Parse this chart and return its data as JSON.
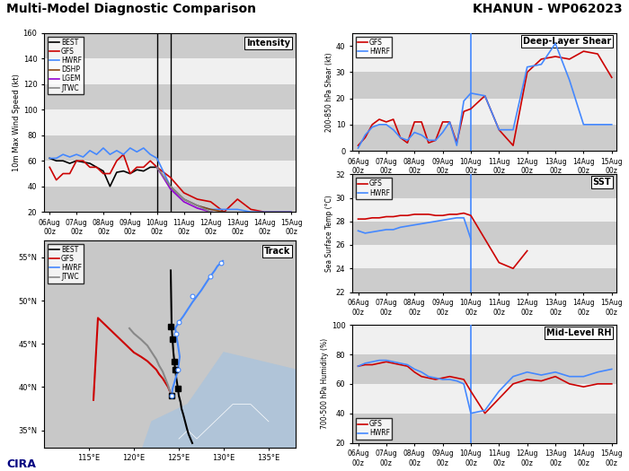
{
  "title_left": "Multi-Model Diagnostic Comparison",
  "title_right": "KHANUN - WP062023",
  "time_labels": [
    "06Aug\n00z",
    "07Aug\n00z",
    "08Aug\n00z",
    "09Aug\n00z",
    "10Aug\n00z",
    "11Aug\n00z",
    "12Aug\n00z",
    "13Aug\n00z",
    "14Aug\n00z",
    "15Aug\n00z"
  ],
  "time_x": [
    0,
    24,
    48,
    72,
    96,
    120,
    144,
    168,
    192,
    216
  ],
  "intensity": {
    "ylabel": "10m Max Wind Speed (kt)",
    "ylim": [
      20,
      160
    ],
    "yticks": [
      20,
      40,
      60,
      80,
      100,
      120,
      140,
      160
    ],
    "vline1": 96,
    "vline2": 108,
    "best_x": [
      0,
      6,
      12,
      18,
      24,
      30,
      36,
      42,
      48,
      54,
      60,
      66,
      72,
      78,
      84,
      90,
      96
    ],
    "best_y": [
      62,
      60,
      60,
      58,
      60,
      59,
      58,
      55,
      52,
      40,
      51,
      52,
      50,
      53,
      52,
      55,
      55
    ],
    "gfs_x": [
      0,
      6,
      12,
      18,
      24,
      30,
      36,
      42,
      48,
      54,
      60,
      66,
      72,
      78,
      84,
      90,
      96,
      108,
      120,
      132,
      144,
      156,
      168,
      180,
      192,
      204,
      216
    ],
    "gfs_y": [
      55,
      45,
      50,
      50,
      60,
      60,
      55,
      55,
      50,
      50,
      60,
      65,
      50,
      55,
      55,
      60,
      55,
      47,
      35,
      30,
      28,
      20,
      30,
      22,
      20,
      20,
      20
    ],
    "hwrf_x": [
      0,
      6,
      12,
      18,
      24,
      30,
      36,
      42,
      48,
      54,
      60,
      66,
      72,
      78,
      84,
      90,
      96,
      108,
      120,
      132,
      144,
      156,
      168,
      180,
      192,
      204,
      216
    ],
    "hwrf_y": [
      62,
      62,
      65,
      63,
      65,
      63,
      68,
      65,
      70,
      65,
      68,
      65,
      70,
      67,
      70,
      65,
      62,
      40,
      30,
      25,
      22,
      22,
      22,
      20,
      20,
      20,
      20
    ],
    "dshp_x": [
      96,
      108,
      120,
      132,
      144,
      156,
      168,
      180,
      192,
      204,
      216
    ],
    "dshp_y": [
      55,
      40,
      30,
      25,
      22,
      20,
      18,
      18,
      18,
      18,
      18
    ],
    "lgem_x": [
      96,
      108,
      120,
      132,
      144,
      156,
      168,
      180,
      192,
      204,
      216
    ],
    "lgem_y": [
      55,
      38,
      28,
      23,
      20,
      18,
      18,
      18,
      18,
      18,
      18
    ],
    "jtwc_x": [
      96,
      108,
      120,
      132,
      144,
      156,
      168,
      180,
      192,
      204,
      216
    ],
    "jtwc_y": [
      55,
      40,
      30,
      25,
      20,
      18,
      18,
      18,
      18,
      18,
      18
    ]
  },
  "shear": {
    "ylabel": "200-850 hPa Shear (kt)",
    "ylim": [
      0,
      45
    ],
    "yticks": [
      0,
      10,
      20,
      30,
      40
    ],
    "vline": 96,
    "gfs_x": [
      0,
      6,
      12,
      18,
      24,
      30,
      36,
      42,
      48,
      54,
      60,
      66,
      72,
      78,
      84,
      90,
      96,
      108,
      120,
      132,
      144,
      156,
      168,
      180,
      192,
      204,
      216
    ],
    "gfs_y": [
      2,
      5,
      10,
      12,
      11,
      12,
      5,
      3,
      11,
      11,
      3,
      4,
      11,
      11,
      3,
      15,
      16,
      21,
      8,
      2,
      30,
      35,
      36,
      35,
      38,
      37,
      28
    ],
    "hwrf_x": [
      0,
      6,
      12,
      18,
      24,
      30,
      36,
      42,
      48,
      54,
      60,
      66,
      72,
      78,
      84,
      90,
      96,
      108,
      120,
      132,
      144,
      156,
      168,
      180,
      192,
      204,
      216
    ],
    "hwrf_y": [
      1,
      6,
      9,
      10,
      10,
      8,
      5,
      4,
      7,
      6,
      4,
      4,
      7,
      11,
      2,
      19,
      22,
      21,
      8,
      8,
      32,
      33,
      41,
      27,
      10,
      10,
      10
    ]
  },
  "sst": {
    "ylabel": "Sea Surface Temp (°C)",
    "ylim": [
      22,
      32
    ],
    "yticks": [
      22,
      24,
      26,
      28,
      30,
      32
    ],
    "vline": 96,
    "gfs_x": [
      0,
      6,
      12,
      18,
      24,
      30,
      36,
      42,
      48,
      54,
      60,
      66,
      72,
      78,
      84,
      90,
      96,
      108,
      120,
      132,
      144
    ],
    "gfs_y": [
      28.2,
      28.2,
      28.3,
      28.3,
      28.4,
      28.4,
      28.5,
      28.5,
      28.6,
      28.6,
      28.6,
      28.5,
      28.5,
      28.6,
      28.6,
      28.7,
      28.5,
      26.5,
      24.5,
      24.0,
      25.5
    ],
    "hwrf_x": [
      0,
      6,
      12,
      18,
      24,
      30,
      36,
      42,
      48,
      54,
      60,
      66,
      72,
      78,
      84,
      90,
      96
    ],
    "hwrf_y": [
      27.2,
      27.0,
      27.1,
      27.2,
      27.3,
      27.3,
      27.5,
      27.6,
      27.7,
      27.8,
      27.9,
      28.0,
      28.1,
      28.2,
      28.3,
      28.3,
      26.5
    ]
  },
  "rh": {
    "ylabel": "700-500 hPa Humidity (%)",
    "ylim": [
      20,
      100
    ],
    "yticks": [
      20,
      40,
      60,
      80,
      100
    ],
    "vline": 96,
    "gfs_x": [
      0,
      6,
      12,
      18,
      24,
      30,
      36,
      42,
      48,
      54,
      60,
      66,
      72,
      78,
      84,
      90,
      96,
      108,
      120,
      132,
      144,
      156,
      168,
      180,
      192,
      204,
      216
    ],
    "gfs_y": [
      72,
      73,
      73,
      74,
      75,
      74,
      73,
      72,
      68,
      65,
      64,
      63,
      64,
      65,
      64,
      63,
      55,
      40,
      50,
      60,
      63,
      62,
      65,
      60,
      58,
      60,
      60
    ],
    "hwrf_x": [
      0,
      6,
      12,
      18,
      24,
      30,
      36,
      42,
      48,
      54,
      60,
      66,
      72,
      78,
      84,
      90,
      96,
      108,
      120,
      132,
      144,
      156,
      168,
      180,
      192,
      204,
      216
    ],
    "hwrf_y": [
      72,
      74,
      75,
      76,
      76,
      75,
      74,
      73,
      70,
      68,
      65,
      64,
      63,
      63,
      62,
      60,
      40,
      42,
      55,
      65,
      68,
      66,
      68,
      65,
      65,
      68,
      70
    ]
  },
  "track": {
    "lon_range": [
      110,
      138
    ],
    "lat_range": [
      33,
      57
    ],
    "best_lon": [
      126.5,
      126.3,
      126.1,
      125.9,
      125.7,
      125.5,
      125.3,
      125.2,
      125.0,
      124.9,
      124.8,
      124.7,
      124.6,
      124.5,
      124.4,
      124.3,
      124.2,
      124.1
    ],
    "best_lat": [
      33.5,
      34.0,
      34.5,
      35.2,
      36.0,
      36.8,
      37.5,
      38.2,
      39.0,
      39.8,
      40.5,
      41.2,
      42.0,
      43.0,
      44.0,
      45.5,
      47.0,
      53.5
    ],
    "gfs_lon": [
      124.2,
      124.0,
      123.8,
      123.5,
      123.2,
      122.8,
      122.5,
      122.0,
      121.5,
      120.8,
      120.0,
      119.5,
      119.0,
      118.5,
      118.0,
      117.5,
      117.0,
      116.5,
      116.0,
      115.5
    ],
    "gfs_lat": [
      39.0,
      39.5,
      40.0,
      40.5,
      41.0,
      41.5,
      42.0,
      42.5,
      43.0,
      43.5,
      44.0,
      44.5,
      45.0,
      45.5,
      46.0,
      46.5,
      47.0,
      47.5,
      48.0,
      38.5
    ],
    "hwrf_lon": [
      124.2,
      124.3,
      124.5,
      124.7,
      124.9,
      125.0,
      125.1,
      125.0,
      124.9,
      124.8,
      124.7,
      124.6,
      125.0,
      125.5,
      126.0,
      126.5,
      127.0,
      127.5,
      128.0,
      128.5,
      129.0,
      129.3,
      129.5,
      129.6,
      129.7,
      129.8,
      129.9
    ],
    "hwrf_lat": [
      39.0,
      39.8,
      40.5,
      41.2,
      42.0,
      42.8,
      43.5,
      44.2,
      44.9,
      45.5,
      46.2,
      46.8,
      47.5,
      48.2,
      49.0,
      49.8,
      50.5,
      51.2,
      52.0,
      52.8,
      53.5,
      54.0,
      54.2,
      54.3,
      54.4,
      54.5,
      54.6
    ],
    "jtwc_lon": [
      124.2,
      124.0,
      123.8,
      123.5,
      123.2,
      122.8,
      122.5,
      122.0,
      121.5,
      120.8,
      120.0,
      119.5
    ],
    "jtwc_lat": [
      39.0,
      39.5,
      40.2,
      41.0,
      41.8,
      42.5,
      43.2,
      44.0,
      44.8,
      45.5,
      46.2,
      46.8
    ],
    "best_markers_lon": [
      124.2,
      124.9,
      124.6,
      124.5,
      124.3,
      124.1
    ],
    "best_markers_lat": [
      39.0,
      39.8,
      42.0,
      43.0,
      45.5,
      47.0
    ],
    "hwrf_markers_lon": [
      124.2,
      124.9,
      124.7,
      125.0,
      126.5,
      128.5,
      129.7
    ],
    "hwrf_markers_lat": [
      39.0,
      42.0,
      46.2,
      47.5,
      50.5,
      52.8,
      54.4
    ]
  },
  "colors": {
    "best": "#000000",
    "gfs": "#cc0000",
    "hwrf": "#4488ff",
    "dshp": "#8B4513",
    "lgem": "#9400D3",
    "jtwc": "#888888",
    "vline_black": "#000000",
    "vline_blue": "#4488ff"
  }
}
